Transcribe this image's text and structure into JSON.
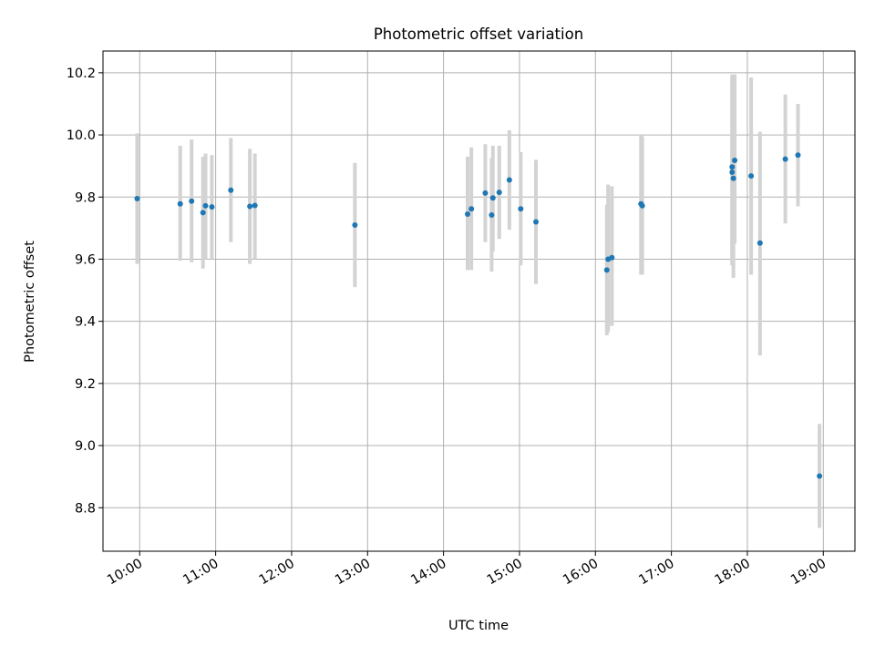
{
  "chart_data": {
    "type": "scatter",
    "title": "Photometric offset variation",
    "xlabel": "UTC time",
    "ylabel": "Photometric offset",
    "x_tick_labels": [
      "10:00",
      "11:00",
      "12:00",
      "13:00",
      "14:00",
      "15:00",
      "16:00",
      "17:00",
      "18:00",
      "19:00"
    ],
    "y_tick_labels": [
      "8.8",
      "9.0",
      "9.2",
      "9.4",
      "9.6",
      "9.8",
      "10.0",
      "10.2"
    ],
    "xlim": [
      "09:31",
      "19:25"
    ],
    "ylim": [
      8.66,
      10.27
    ],
    "grid": true,
    "colors": {
      "points": "#1f77b4",
      "error_bars": "#d3d3d3",
      "grid": "#b0b0b0"
    },
    "series": [
      {
        "points": [
          {
            "x": "09:58",
            "y": 9.795,
            "lo": 9.585,
            "hi": 10.005
          },
          {
            "x": "10:32",
            "y": 9.778,
            "lo": 9.595,
            "hi": 9.965
          },
          {
            "x": "10:41",
            "y": 9.787,
            "lo": 9.59,
            "hi": 9.985
          },
          {
            "x": "10:50",
            "y": 9.75,
            "lo": 9.57,
            "hi": 9.93
          },
          {
            "x": "10:52",
            "y": 9.772,
            "lo": 9.6,
            "hi": 9.94
          },
          {
            "x": "10:57",
            "y": 9.768,
            "lo": 9.6,
            "hi": 9.935
          },
          {
            "x": "11:12",
            "y": 9.822,
            "lo": 9.655,
            "hi": 9.99
          },
          {
            "x": "11:27",
            "y": 9.77,
            "lo": 9.585,
            "hi": 9.955
          },
          {
            "x": "11:31",
            "y": 9.773,
            "lo": 9.6,
            "hi": 9.94
          },
          {
            "x": "12:50",
            "y": 9.71,
            "lo": 9.51,
            "hi": 9.91
          },
          {
            "x": "14:19",
            "y": 9.745,
            "lo": 9.565,
            "hi": 9.93
          },
          {
            "x": "14:22",
            "y": 9.762,
            "lo": 9.565,
            "hi": 9.96
          },
          {
            "x": "14:33",
            "y": 9.813,
            "lo": 9.655,
            "hi": 9.97
          },
          {
            "x": "14:38",
            "y": 9.742,
            "lo": 9.56,
            "hi": 9.925
          },
          {
            "x": "14:39",
            "y": 9.797,
            "lo": 9.625,
            "hi": 9.965
          },
          {
            "x": "14:44",
            "y": 9.815,
            "lo": 9.665,
            "hi": 9.965
          },
          {
            "x": "14:52",
            "y": 9.855,
            "lo": 9.695,
            "hi": 10.015
          },
          {
            "x": "15:01",
            "y": 9.762,
            "lo": 9.58,
            "hi": 9.945
          },
          {
            "x": "15:13",
            "y": 9.72,
            "lo": 9.52,
            "hi": 9.92
          },
          {
            "x": "16:09",
            "y": 9.565,
            "lo": 9.355,
            "hi": 9.775
          },
          {
            "x": "16:10",
            "y": 9.6,
            "lo": 9.365,
            "hi": 9.84
          },
          {
            "x": "16:13",
            "y": 9.605,
            "lo": 9.385,
            "hi": 9.835
          },
          {
            "x": "16:36",
            "y": 9.778,
            "lo": 9.55,
            "hi": 10.0
          },
          {
            "x": "16:37",
            "y": 9.772,
            "lo": 9.55,
            "hi": 9.995
          },
          {
            "x": "17:48",
            "y": 9.897,
            "lo": 9.59,
            "hi": 10.195
          },
          {
            "x": "17:48",
            "y": 9.88,
            "lo": 9.58,
            "hi": 10.18
          },
          {
            "x": "17:49",
            "y": 9.86,
            "lo": 9.54,
            "hi": 10.18
          },
          {
            "x": "17:50",
            "y": 9.918,
            "lo": 9.65,
            "hi": 10.195
          },
          {
            "x": "18:03",
            "y": 9.868,
            "lo": 9.55,
            "hi": 10.185
          },
          {
            "x": "18:10",
            "y": 9.652,
            "lo": 9.29,
            "hi": 10.01
          },
          {
            "x": "18:30",
            "y": 9.922,
            "lo": 9.715,
            "hi": 10.13
          },
          {
            "x": "18:40",
            "y": 9.935,
            "lo": 9.77,
            "hi": 10.1
          },
          {
            "x": "18:57",
            "y": 8.902,
            "lo": 8.735,
            "hi": 9.07
          }
        ]
      }
    ]
  }
}
